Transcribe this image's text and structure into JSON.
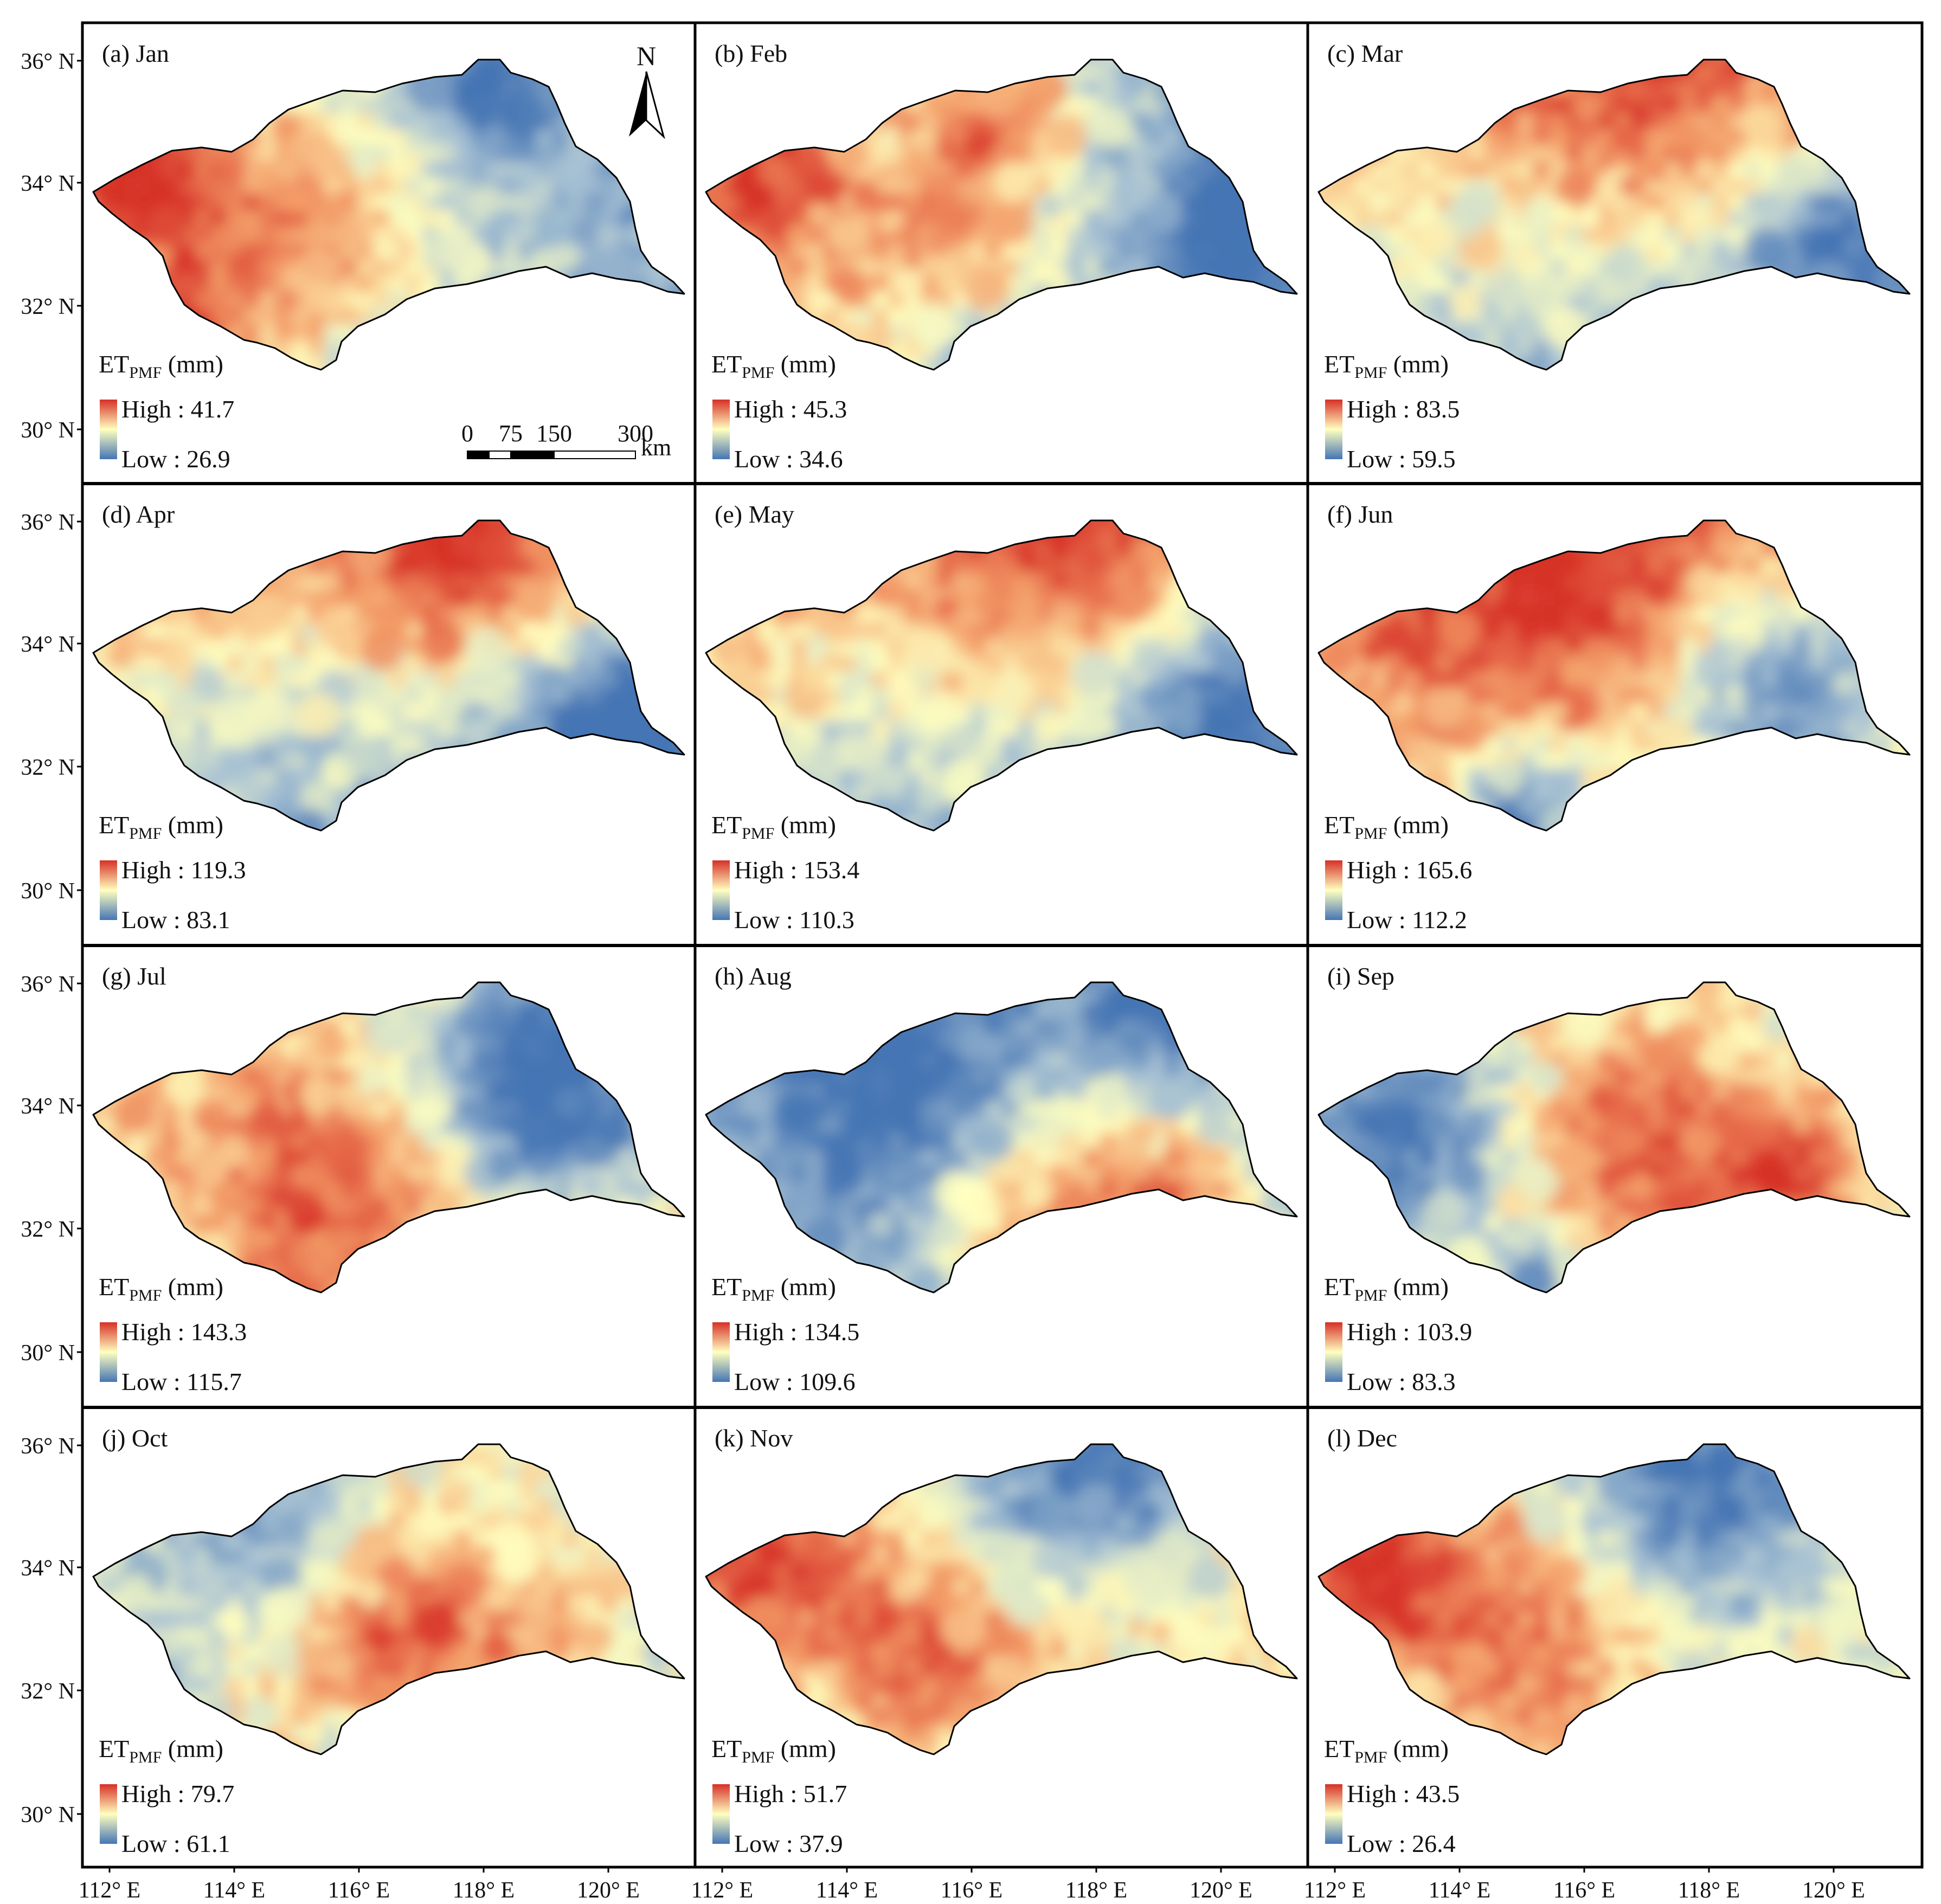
{
  "figure": {
    "unit_label_main": "ET",
    "unit_label_sub": "PMF",
    "unit_label_tail": " (mm)",
    "high_prefix": "High : ",
    "low_prefix": "Low : ",
    "north_label": "N",
    "scalebar": {
      "ticks": [
        "0",
        "75",
        "150",
        "300"
      ],
      "unit": "km"
    },
    "lat_labels": [
      "36° N",
      "34° N",
      "32° N",
      "30° N"
    ],
    "lon_labels": [
      "112° E",
      "114° E",
      "116° E",
      "118° E",
      "120° E"
    ]
  },
  "colors": {
    "high": "#d73027",
    "mid": "#ffffbf",
    "low": "#4575b4",
    "border": "#000000"
  },
  "panels": [
    {
      "id": "a",
      "title": "(a) Jan",
      "high": "41.7",
      "low": "26.9",
      "pattern": "jan"
    },
    {
      "id": "b",
      "title": "(b) Feb",
      "high": "45.3",
      "low": "34.6",
      "pattern": "feb"
    },
    {
      "id": "c",
      "title": "(c) Mar",
      "high": "83.5",
      "low": "59.5",
      "pattern": "mar"
    },
    {
      "id": "d",
      "title": "(d) Apr",
      "high": "119.3",
      "low": "83.1",
      "pattern": "apr"
    },
    {
      "id": "e",
      "title": "(e) May",
      "high": "153.4",
      "low": "110.3",
      "pattern": "may"
    },
    {
      "id": "f",
      "title": "(f) Jun",
      "high": "165.6",
      "low": "112.2",
      "pattern": "jun"
    },
    {
      "id": "g",
      "title": "(g) Jul",
      "high": "143.3",
      "low": "115.7",
      "pattern": "jul"
    },
    {
      "id": "h",
      "title": "(h) Aug",
      "high": "134.5",
      "low": "109.6",
      "pattern": "aug"
    },
    {
      "id": "i",
      "title": "(i) Sep",
      "high": "103.9",
      "low": "83.3",
      "pattern": "sep"
    },
    {
      "id": "j",
      "title": "(j) Oct",
      "high": "79.7",
      "low": "61.1",
      "pattern": "oct"
    },
    {
      "id": "k",
      "title": "(k) Nov",
      "high": "51.7",
      "low": "37.9",
      "pattern": "nov"
    },
    {
      "id": "l",
      "title": "(l) Dec",
      "high": "43.5",
      "low": "26.4",
      "pattern": "dec"
    }
  ]
}
